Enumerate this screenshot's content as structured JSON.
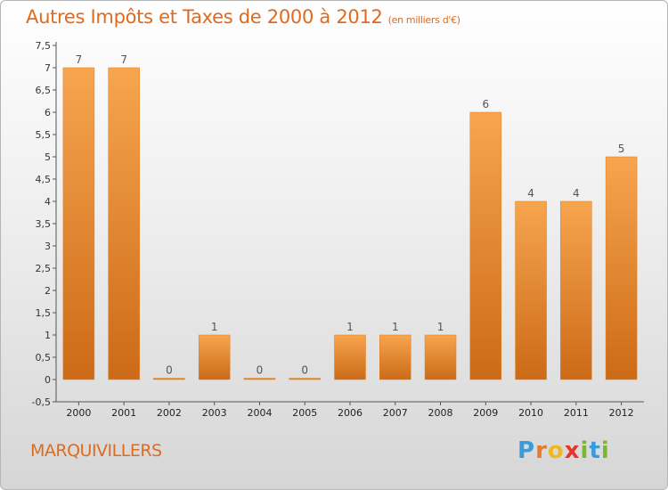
{
  "header": {
    "title": "Autres Impôts et Taxes de 2000 à 2012",
    "subtitle": "(en milliers d'€)"
  },
  "footer": {
    "commune": "MARQUIVILLERS",
    "logo": [
      "P",
      "r",
      "o",
      "x",
      "i",
      "t",
      "i"
    ]
  },
  "colors": {
    "accent": "#e06a1e",
    "bar_top": "#f7a54f",
    "bar_bottom": "#cc6a17",
    "logo_letters": [
      "#3b9ad9",
      "#e8782a",
      "#f0b820",
      "#e8372a",
      "#7cb82f",
      "#3b9ad9",
      "#7cb82f"
    ]
  },
  "chart_data": {
    "type": "bar",
    "title": "Autres Impôts et Taxes de 2000 à 2012",
    "subtitle": "(en milliers d'€)",
    "categories": [
      "2000",
      "2001",
      "2002",
      "2003",
      "2004",
      "2005",
      "2006",
      "2007",
      "2008",
      "2009",
      "2010",
      "2011",
      "2012"
    ],
    "values": [
      7,
      7,
      0,
      1,
      0,
      0,
      1,
      1,
      1,
      6,
      4,
      4,
      5
    ],
    "data_labels": [
      "7",
      "7",
      "0",
      "1",
      "0",
      "0",
      "1",
      "1",
      "1",
      "6",
      "4",
      "4",
      "5"
    ],
    "ylim": [
      -0.5,
      7.5
    ],
    "yticks": [
      "-0,5",
      "0",
      "0,5",
      "1",
      "1,5",
      "2",
      "2,5",
      "3",
      "3,5",
      "4",
      "4,5",
      "5",
      "5,5",
      "6",
      "6,5",
      "7",
      "7,5"
    ],
    "ytick_values": [
      -0.5,
      0,
      0.5,
      1,
      1.5,
      2,
      2.5,
      3,
      3.5,
      4,
      4.5,
      5,
      5.5,
      6,
      6.5,
      7,
      7.5
    ],
    "grid": false,
    "legend": "none"
  }
}
